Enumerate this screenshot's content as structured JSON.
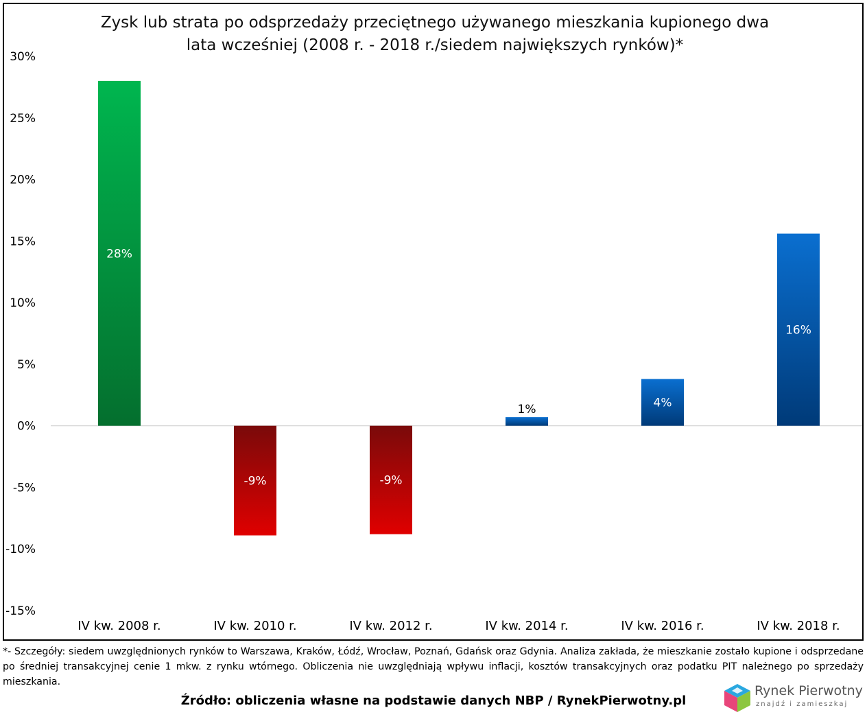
{
  "chart_data": {
    "type": "bar",
    "title_lines": [
      "Zysk lub strata po odsprzedaży przeciętnego używanego mieszkania kupionego dwa",
      "lata wcześniej (2008 r. - 2018 r./siedem największych rynków)*"
    ],
    "categories": [
      "IV kw. 2008 r.",
      "IV kw. 2010 r.",
      "IV kw. 2012 r.",
      "IV kw. 2014 r.",
      "IV kw. 2016 r.",
      "IV kw. 2018 r."
    ],
    "values": [
      28,
      -8.9,
      -8.8,
      0.7,
      3.8,
      15.6
    ],
    "data_labels": [
      "28%",
      "-9%",
      "-9%",
      "1%",
      "4%",
      "16%"
    ],
    "ylim": [
      -15,
      30
    ],
    "yticks": [
      30,
      25,
      20,
      15,
      10,
      5,
      0,
      -5,
      -10,
      -15
    ],
    "ytick_labels": [
      "30%",
      "25%",
      "20%",
      "15%",
      "10%",
      "5%",
      "0%",
      "-5%",
      "-10%",
      "-15%"
    ],
    "grid": false,
    "colors": {
      "green_top": "#00b64f",
      "green_bottom": "#046f2e",
      "red_top": "#7a0a0a",
      "red_bottom": "#e00000",
      "blue_top": "#0a6fd0",
      "blue_bottom": "#003a78",
      "axis": "#d0d0d0"
    }
  },
  "footnote": "*- Szczegóły: siedem uwzględnionych rynków to Warszawa, Kraków, Łódź, Wrocław, Poznań, Gdańsk oraz Gdynia. Analiza zakłada, że mieszkanie zostało kupione i odsprzedane po średniej transakcyjnej cenie 1 mkw. z rynku wtórnego. Obliczenia nie uwzględniają wpływu inflacji, kosztów transakcyjnych oraz podatku PIT należnego po sprzedaży mieszkania.",
  "source": "Źródło: obliczenia własne na podstawie danych NBP / RynekPierwotny.pl",
  "brand": {
    "name": "Rynek Pierwotny",
    "tagline": "znajdź i zamieszkaj"
  }
}
